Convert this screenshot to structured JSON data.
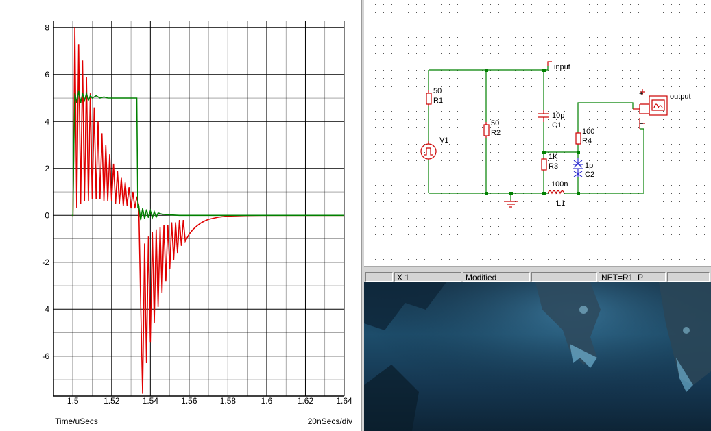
{
  "plot": {
    "x_axis_label": "Time/uSecs",
    "x_scale_label": "20nSecs/div",
    "x_ticks": [
      "1.5",
      "1.52",
      "1.54",
      "1.56",
      "1.58",
      "1.6",
      "1.62",
      "1.64"
    ],
    "y_ticks": [
      "8",
      "6",
      "4",
      "2",
      "0",
      "-2",
      "-4",
      "-6"
    ],
    "colors": {
      "red_trace": "#e00000",
      "green_trace": "#008000",
      "grid": "#000000"
    }
  },
  "chart_data": {
    "type": "line",
    "xlabel": "Time/uSecs",
    "ylabel": "",
    "xlim": [
      1.49,
      1.64
    ],
    "ylim": [
      -7.7,
      8.3
    ],
    "grid": true,
    "series": [
      {
        "color": "#e00000",
        "x": [
          1.4995,
          1.5,
          1.5005,
          1.501,
          1.502,
          1.503,
          1.504,
          1.505,
          1.506,
          1.507,
          1.508,
          1.509,
          1.51,
          1.511,
          1.512,
          1.513,
          1.514,
          1.515,
          1.516,
          1.517,
          1.518,
          1.519,
          1.52,
          1.521,
          1.522,
          1.523,
          1.524,
          1.525,
          1.526,
          1.527,
          1.528,
          1.529,
          1.53,
          1.531,
          1.532,
          1.533,
          1.534,
          1.535,
          1.536,
          1.537,
          1.538,
          1.539,
          1.54,
          1.541,
          1.542,
          1.543,
          1.544,
          1.545,
          1.546,
          1.547,
          1.548,
          1.549,
          1.55,
          1.551,
          1.552,
          1.553,
          1.554,
          1.555,
          1.556,
          1.557,
          1.558,
          1.56,
          1.562,
          1.564,
          1.566,
          1.568,
          1.57,
          1.575,
          1.58,
          1.59,
          1.6,
          1.62,
          1.64
        ],
        "y": [
          0,
          0,
          3.2,
          8.0,
          0.3,
          7.3,
          0.5,
          6.6,
          0.6,
          5.9,
          0.6,
          5.2,
          0.7,
          4.6,
          0.7,
          4.0,
          0.7,
          3.5,
          0.6,
          3.0,
          0.6,
          2.6,
          0.6,
          2.2,
          0.5,
          1.9,
          0.5,
          1.6,
          0.4,
          1.4,
          0.4,
          1.2,
          0.3,
          1.0,
          0.3,
          0.8,
          0.4,
          -3.8,
          -7.6,
          -1.2,
          -6.3,
          -0.9,
          -5.4,
          -0.7,
          -4.6,
          -0.6,
          -3.9,
          -0.5,
          -3.3,
          -0.4,
          -2.8,
          -0.4,
          -2.3,
          -0.3,
          -1.9,
          -0.3,
          -1.6,
          -0.2,
          -1.3,
          -0.2,
          -1.1,
          -0.8,
          -0.6,
          -0.45,
          -0.33,
          -0.24,
          -0.17,
          -0.08,
          -0.03,
          -0.01,
          0,
          0,
          0
        ]
      },
      {
        "color": "#008000",
        "x": [
          1.4995,
          1.5,
          1.5005,
          1.501,
          1.502,
          1.503,
          1.504,
          1.505,
          1.506,
          1.507,
          1.508,
          1.509,
          1.51,
          1.512,
          1.514,
          1.516,
          1.518,
          1.52,
          1.525,
          1.53,
          1.533,
          1.5335,
          1.534,
          1.535,
          1.536,
          1.537,
          1.538,
          1.539,
          1.54,
          1.541,
          1.542,
          1.543,
          1.544,
          1.546,
          1.548,
          1.55,
          1.555,
          1.56,
          1.64
        ],
        "y": [
          0,
          0,
          3.0,
          5.2,
          4.8,
          5.3,
          4.8,
          5.2,
          4.9,
          5.2,
          4.9,
          5.1,
          5.0,
          5.1,
          5.0,
          5.05,
          5.0,
          5.0,
          5.0,
          5.0,
          5.0,
          0.3,
          0.4,
          -0.2,
          0.3,
          -0.15,
          0.25,
          -0.1,
          0.2,
          -0.1,
          0.15,
          -0.08,
          0.1,
          0.05,
          0.03,
          0.02,
          0,
          0,
          0
        ]
      }
    ]
  },
  "schematic": {
    "labels": {
      "input": "input",
      "output": "output",
      "R1_value": "50",
      "R1": "R1",
      "R2_value": "50",
      "R2": "R2",
      "V1": "V1",
      "C1_value": "10p",
      "C1": "C1",
      "R3_value": "1K",
      "R3": "R3",
      "R4_value": "100",
      "R4": "R4",
      "C2_value": "1p",
      "C2": "C2",
      "L1_value": "100n",
      "L1": "L1",
      "plus": "+",
      "minus": "−"
    },
    "colors": {
      "wire": "#008000",
      "component": "#cc0000",
      "capacitor_c2": "#3030d0",
      "grid_dot": "#555555"
    }
  },
  "status_bar": {
    "field1": "",
    "field2": "X    1",
    "field3": "Modified",
    "field4": "",
    "field5": "NET=R1_P",
    "field6": ""
  }
}
